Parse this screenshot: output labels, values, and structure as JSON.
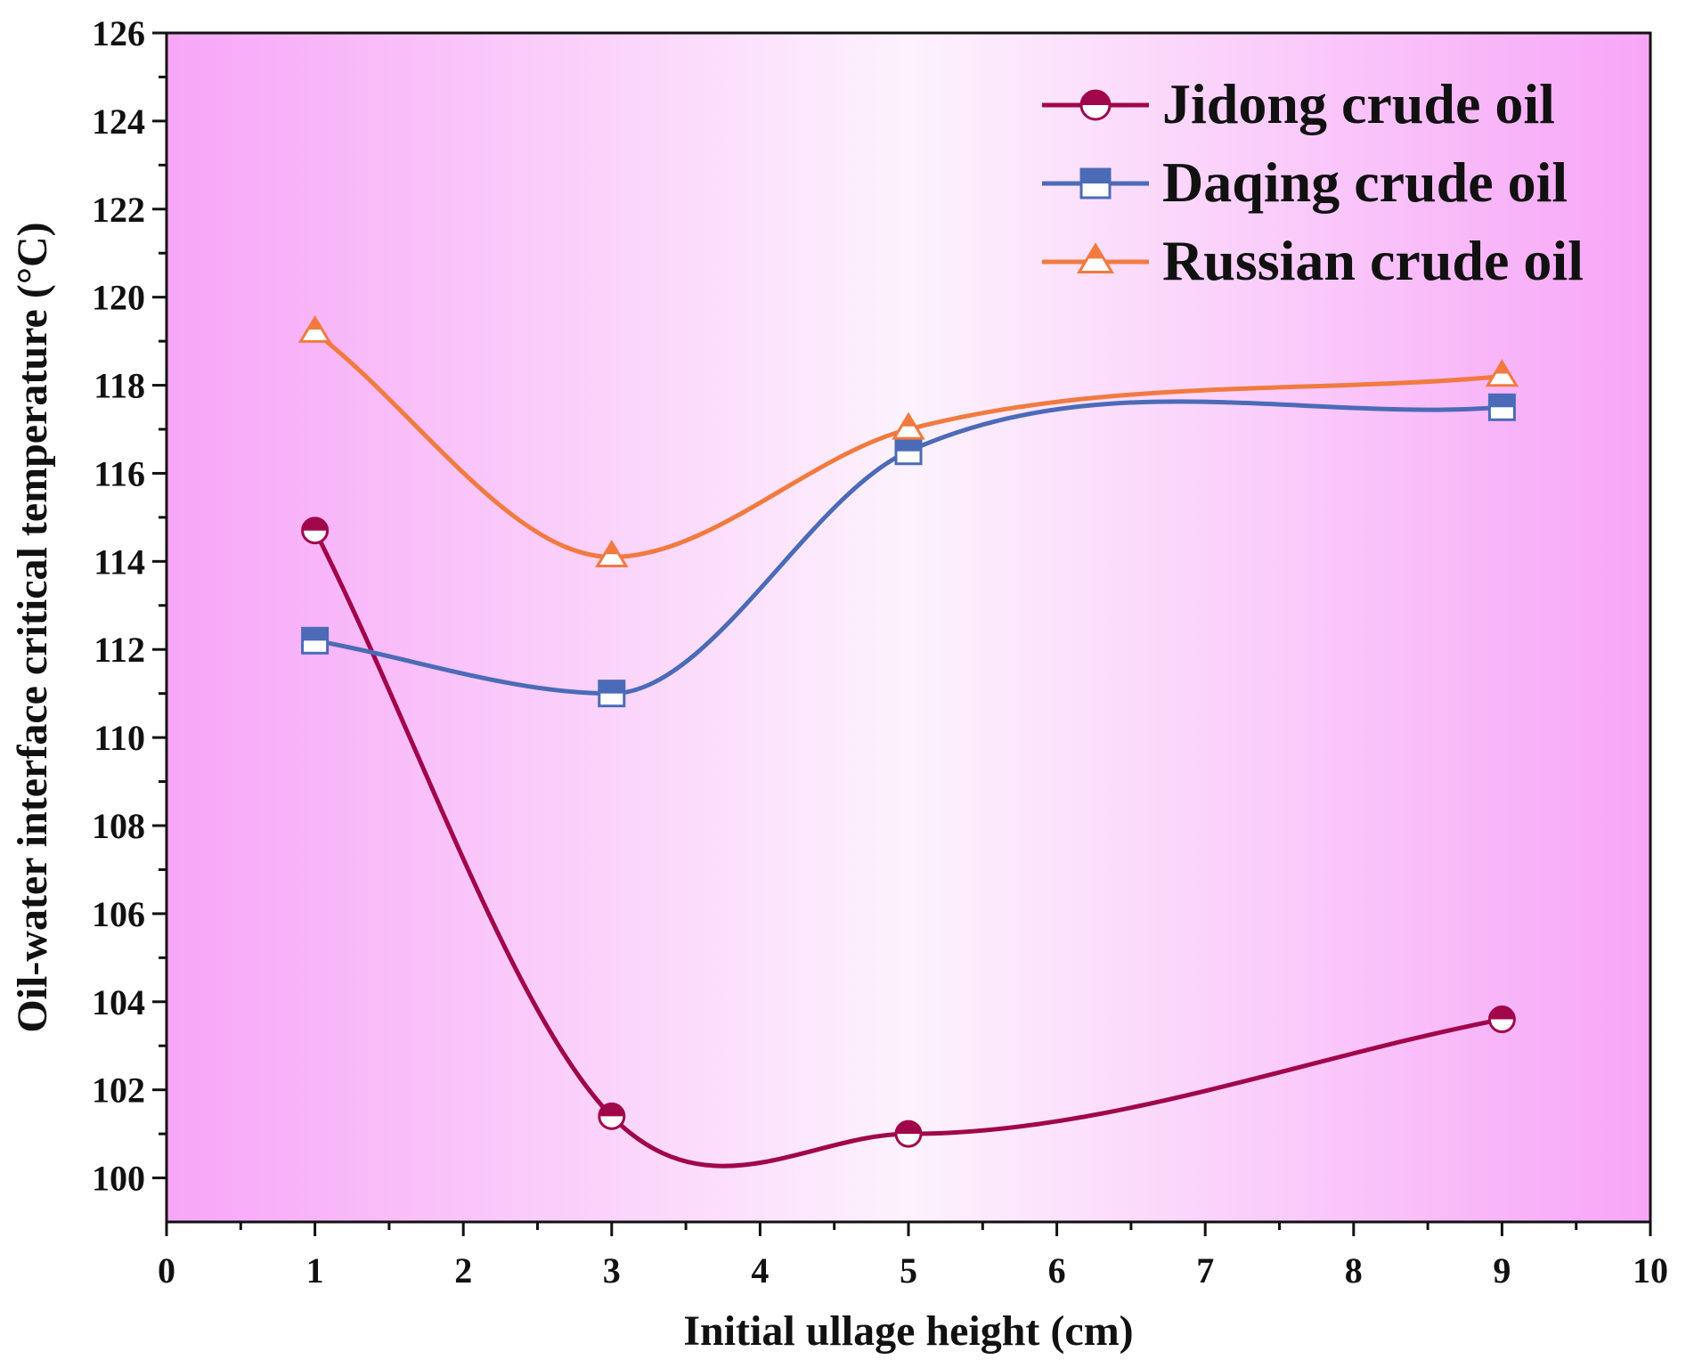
{
  "chart_data": {
    "type": "line",
    "title": "",
    "xlabel": "Initial ullage height (cm)",
    "ylabel": "Oil-water interface critical temperature (°C)",
    "xlim": [
      0,
      10
    ],
    "ylim": [
      99,
      126
    ],
    "x_ticks": [
      0,
      1,
      2,
      3,
      4,
      5,
      6,
      7,
      8,
      9,
      10
    ],
    "y_ticks": [
      100,
      102,
      104,
      106,
      108,
      110,
      112,
      114,
      116,
      118,
      120,
      122,
      124,
      126
    ],
    "legend_position": "top-right",
    "grid": false,
    "background": {
      "edge_color": "#F7A6F7",
      "center_color": "#FDF2FD"
    },
    "series": [
      {
        "name": "Jidong crude oil",
        "marker": "circle",
        "color": "#A0064A",
        "x": [
          1,
          3,
          5,
          9
        ],
        "y": [
          114.7,
          101.4,
          101.0,
          103.6
        ]
      },
      {
        "name": "Daqing crude oil",
        "marker": "square",
        "color": "#4B6BB7",
        "x": [
          1,
          3,
          5,
          9
        ],
        "y": [
          112.2,
          111.0,
          116.5,
          117.5
        ]
      },
      {
        "name": "Russian crude oil",
        "marker": "triangle",
        "color": "#F07A40",
        "x": [
          1,
          3,
          5,
          9
        ],
        "y": [
          119.2,
          114.1,
          117.0,
          118.2
        ]
      }
    ]
  }
}
